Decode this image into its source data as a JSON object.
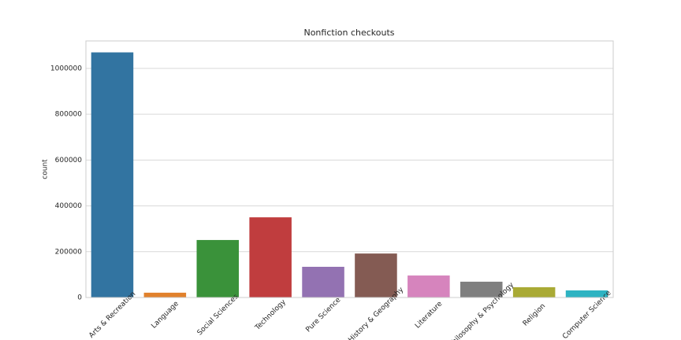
{
  "chart_data": {
    "type": "bar",
    "title": "Nonfiction checkouts",
    "y_label": "count",
    "categories": [
      "Arts & Recreation",
      "Language",
      "Social Sciences",
      "Technology",
      "Pure Science",
      "History & Geography",
      "Literature",
      "Philosophy & Psychology",
      "Religion",
      "Computer Science"
    ],
    "values": [
      1070000,
      21000,
      251000,
      350000,
      134000,
      192000,
      96000,
      69000,
      45000,
      31000
    ],
    "colors": [
      "#3274a1",
      "#e1812c",
      "#3a923a",
      "#c03d3e",
      "#9372b2",
      "#845b53",
      "#d684bd",
      "#7f7f7f",
      "#a9aa35",
      "#2eb3c2"
    ],
    "ylim": [
      0,
      1120000
    ],
    "yticks": [
      0,
      200000,
      400000,
      600000,
      800000,
      1000000
    ],
    "grid": true
  }
}
